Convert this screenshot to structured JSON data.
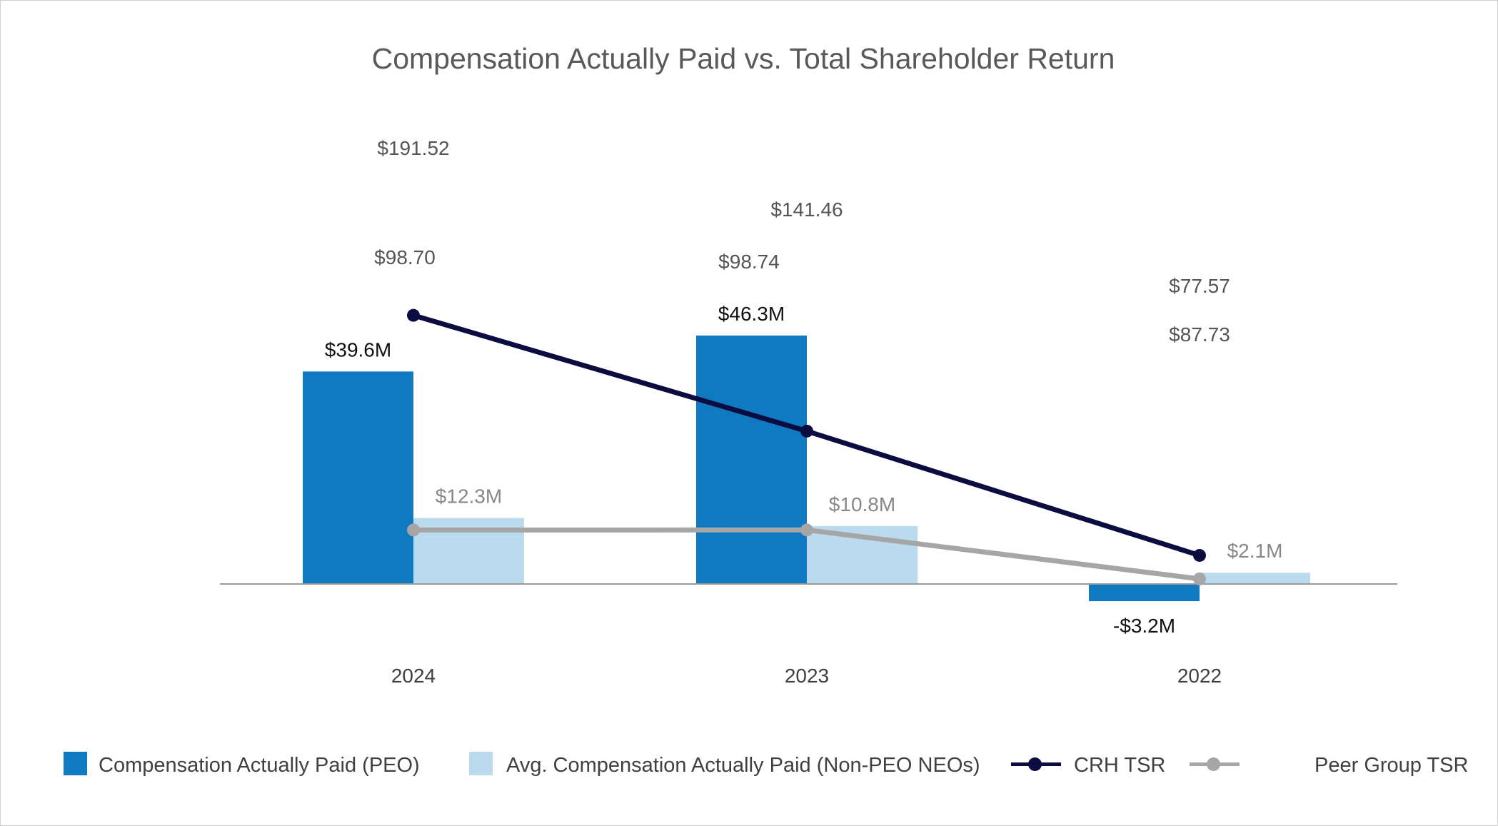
{
  "chart_data": {
    "type": "bar",
    "title": "Compensation Actually Paid vs. Total Shareholder Return",
    "categories": [
      "2024",
      "2023",
      "2022"
    ],
    "bar_series": [
      {
        "name": "Compensation Actually Paid (PEO)",
        "values": [
          39.6,
          46.3,
          -3.2
        ],
        "labels": [
          "$39.6M",
          "$46.3M",
          "-$3.2M"
        ],
        "color": "#0f7ac2",
        "label_color": "#111111"
      },
      {
        "name": "Avg. Compensation Actually Paid (Non-PEO NEOs)",
        "values": [
          12.3,
          10.8,
          2.1
        ],
        "labels": [
          "$12.3M",
          "$10.8M",
          "$2.1M"
        ],
        "color": "#badaee",
        "label_color": "#888888"
      }
    ],
    "line_series": [
      {
        "name": "CRH TSR",
        "values": [
          191.52,
          141.46,
          87.73
        ],
        "labels": [
          "$191.52",
          "$141.46",
          "$87.73"
        ],
        "color": "#0b0c3f"
      },
      {
        "name": "Peer Group TSR",
        "values": [
          98.7,
          98.74,
          77.57
        ],
        "labels": [
          "$98.70",
          "$98.74",
          "$77.57"
        ],
        "color": "#a6a6a6"
      }
    ],
    "legend_position": "bottom",
    "grid": false
  }
}
